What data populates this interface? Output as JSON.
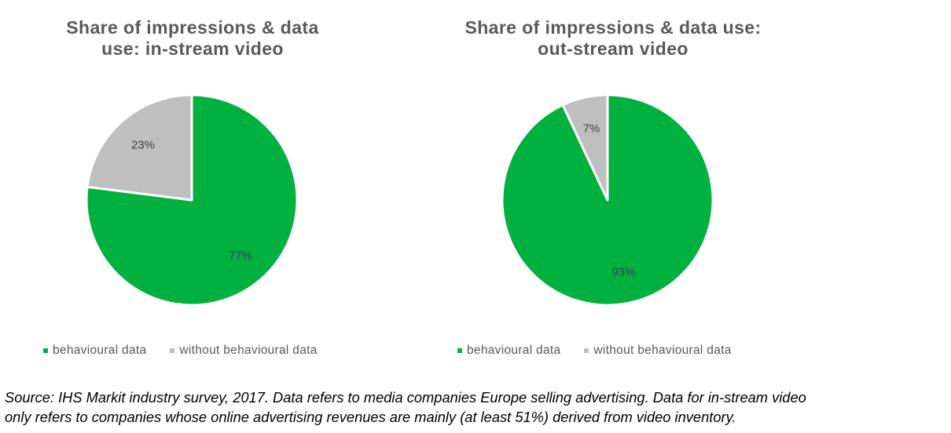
{
  "colors": {
    "behavioural": "#00b140",
    "without": "#bfbfbf",
    "title": "#595959",
    "label": "#404040"
  },
  "chart_data": [
    {
      "type": "pie",
      "title_lines": [
        "Share of impressions & data",
        "use: in-stream video"
      ],
      "slices": [
        {
          "name": "behavioural data",
          "value": 77,
          "label": "77%",
          "color": "#00b140"
        },
        {
          "name": "without behavioural data",
          "value": 23,
          "label": "23%",
          "color": "#bfbfbf"
        }
      ],
      "legend": {
        "position": "bottom",
        "items": [
          "behavioural data",
          "without behavioural data"
        ]
      }
    },
    {
      "type": "pie",
      "title_lines": [
        "Share of impressions & data use:",
        "out-stream video"
      ],
      "slices": [
        {
          "name": "behavioural data",
          "value": 93,
          "label": "93%",
          "color": "#00b140"
        },
        {
          "name": "without behavioural data",
          "value": 7,
          "label": "7%",
          "color": "#bfbfbf"
        }
      ],
      "legend": {
        "position": "bottom",
        "items": [
          "behavioural data",
          "without behavioural data"
        ]
      }
    }
  ],
  "source": {
    "lines": [
      "Source: IHS Markit industry survey, 2017. Data refers to media companies Europe selling advertising. Data for in-stream video",
      "only refers to companies whose online advertising revenues are mainly (at least 51%) derived from video inventory."
    ]
  }
}
